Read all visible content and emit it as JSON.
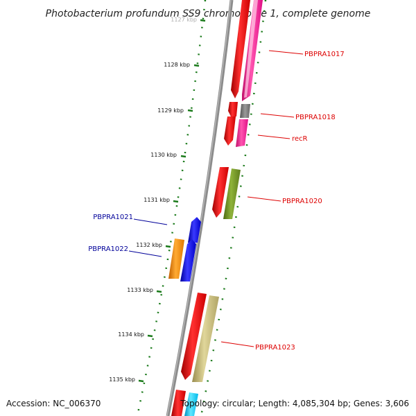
{
  "title": "Photobacterium profundum SS9 chromosome 1, complete genome",
  "footer": {
    "accession": "Accession: NC_006370",
    "topology": "Topology: circular; Length: 4,085,304 bp; Genes: 3,606"
  },
  "ticks": [
    "1127 kbp",
    "1128 kbp",
    "1129 kbp",
    "1130 kbp",
    "1131 kbp",
    "1132 kbp",
    "1133 kbp",
    "1134 kbp",
    "1135 kbp"
  ],
  "genes": [
    {
      "label": "PBPRA1017",
      "color": "#dd0000"
    },
    {
      "label": "PBPRA1018",
      "color": "#dd0000"
    },
    {
      "label": "recR",
      "color": "#dd0000"
    },
    {
      "label": "PBPRA1020",
      "color": "#dd0000"
    },
    {
      "label": "PBPRA1021",
      "color": "#000099"
    },
    {
      "label": "PBPRA1022",
      "color": "#000099"
    },
    {
      "label": "PBPRA1023",
      "color": "#dd0000"
    }
  ],
  "colors": {
    "backbone": "#808080",
    "ticks": "#1a7a1a",
    "red_feature": "#ff0000",
    "pink_feature": "#ff1493",
    "grey_feature": "#777777",
    "olive_feature": "#6b8e23",
    "blue_feature": "#0000ee",
    "orange_feature": "#ff8c00",
    "khaki_feature": "#c8bc7a",
    "cyan_feature": "#00cfff"
  }
}
